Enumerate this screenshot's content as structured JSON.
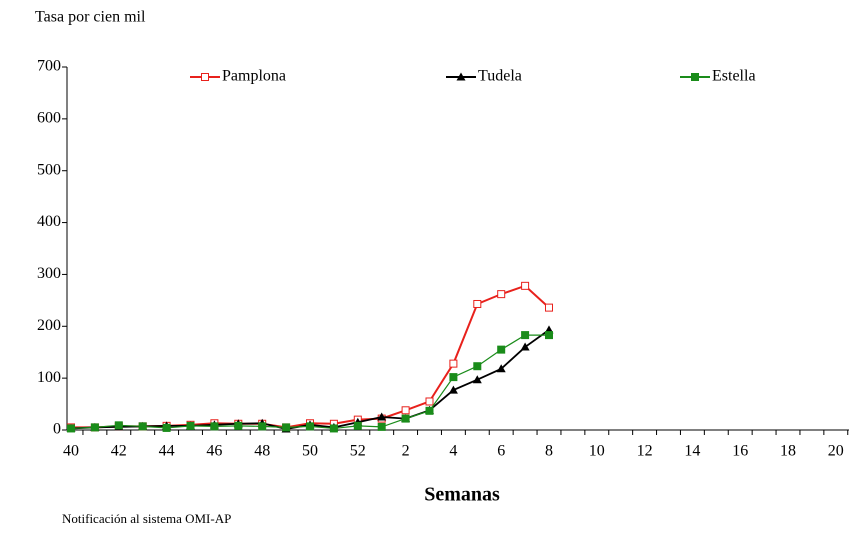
{
  "chart_data": {
    "type": "line",
    "y_label": "Tasa por cien mil",
    "x_label": "Semanas",
    "note": "Notificación al sistema OMI-AP",
    "categories": [
      "40",
      null,
      "42",
      null,
      "44",
      null,
      "46",
      null,
      "48",
      null,
      "50",
      null,
      "52",
      null,
      "2",
      null,
      "4",
      null,
      "6",
      null,
      "8",
      null,
      "10",
      null,
      "12",
      null,
      "14",
      null,
      "16",
      null,
      "18",
      null,
      "20"
    ],
    "series": [
      {
        "name": "Pamplona",
        "color": "#e8211c",
        "marker": "open-square",
        "values": [
          5,
          5,
          7,
          7,
          8,
          10,
          13,
          12,
          12,
          5,
          13,
          12,
          20,
          22,
          38,
          55,
          128,
          243,
          262,
          278,
          236,
          null,
          null,
          null,
          null,
          null,
          null,
          null,
          null,
          null,
          null,
          null,
          null
        ]
      },
      {
        "name": "Tudela",
        "color": "#000000",
        "marker": "triangle",
        "values": [
          3,
          5,
          6,
          7,
          8,
          8,
          10,
          12,
          13,
          2,
          10,
          5,
          15,
          25,
          22,
          38,
          77,
          97,
          118,
          160,
          193,
          null,
          null,
          null,
          null,
          null,
          null,
          null,
          null,
          null,
          null,
          null,
          null
        ]
      },
      {
        "name": "Estella",
        "color": "#1a8c1a",
        "marker": "square",
        "values": [
          3,
          5,
          9,
          7,
          4,
          8,
          7,
          8,
          7,
          5,
          7,
          3,
          8,
          6,
          22,
          37,
          102,
          123,
          155,
          183,
          183,
          null,
          null,
          null,
          null,
          null,
          null,
          null,
          null,
          null,
          null,
          null,
          null
        ]
      }
    ],
    "ylim": [
      0,
      700
    ],
    "yticks": [
      0,
      100,
      200,
      300,
      400,
      500,
      600,
      700
    ],
    "grid": false,
    "legend": "top"
  }
}
